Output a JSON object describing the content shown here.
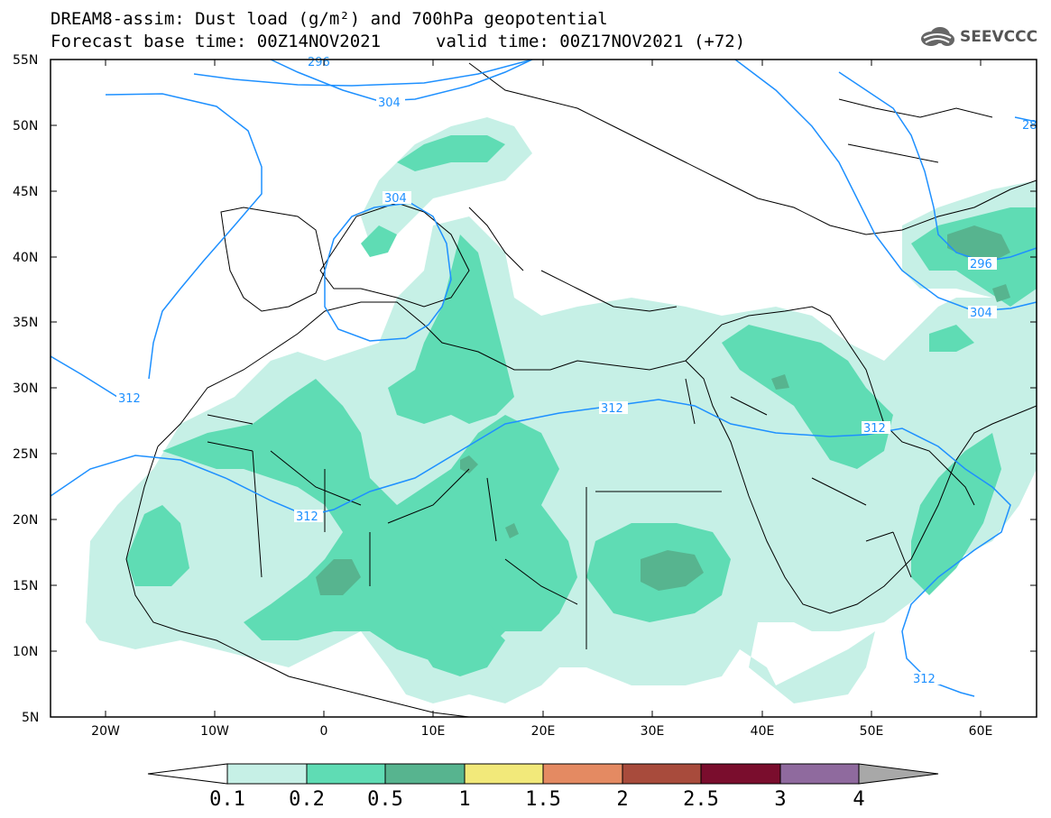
{
  "title": {
    "line1": "DREAM8-assim: Dust load (g/m²) and 700hPa geopotential",
    "line2_left": "Forecast base time: 00Z14NOV2021",
    "line2_right": "valid time: 00Z17NOV2021 (+72)"
  },
  "logo": {
    "text": "SEEVCCC",
    "icon": "cloud-icon"
  },
  "map": {
    "lat_labels": [
      "55N",
      "50N",
      "45N",
      "40N",
      "35N",
      "30N",
      "25N",
      "20N",
      "15N",
      "10N",
      "5N"
    ],
    "lon_labels": [
      "20W",
      "10W",
      "0",
      "10E",
      "20E",
      "30E",
      "40E",
      "50E",
      "60E"
    ],
    "lat_range": [
      5,
      55
    ],
    "lon_range": [
      -25,
      65
    ],
    "contour_labels": [
      "296",
      "304",
      "304",
      "312",
      "312",
      "312",
      "312",
      "296",
      "304",
      "312",
      "28"
    ]
  },
  "colorbar": {
    "labels": [
      "0.1",
      "0.2",
      "0.5",
      "1",
      "1.5",
      "2",
      "2.5",
      "3",
      "4"
    ],
    "colors": [
      "#ffffff",
      "#c6f0e6",
      "#5fdcb4",
      "#57b48f",
      "#f2e97a",
      "#e48a62",
      "#a84b3c",
      "#7a0d2d",
      "#8f6a9e",
      "#a8a8a8"
    ]
  },
  "colors": {
    "contour": "#1e90ff",
    "dust_low": "#c6f0e6",
    "dust_mid": "#5fdcb4",
    "dust_high": "#57b48f"
  }
}
